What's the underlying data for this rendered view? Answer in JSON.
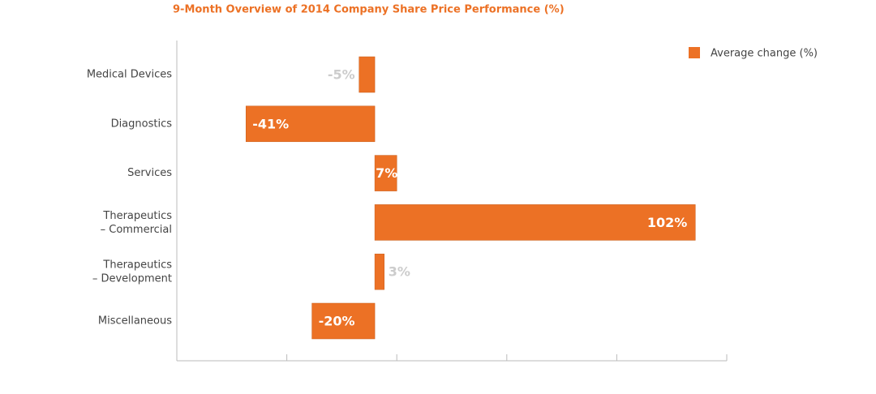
{
  "chart_data": {
    "type": "bar",
    "orientation": "horizontal",
    "title": "9-Month Overview of 2014 Company Share Price Performance (%)",
    "categories": [
      "Medical Devices",
      "Diagnostics",
      "Services",
      "Therapeutics – Commercial",
      "Therapeutics – Development",
      "Miscellaneous"
    ],
    "series": [
      {
        "name": "Average change (%)",
        "color": "#ec7125",
        "values": [
          -5,
          -41,
          7,
          102,
          3,
          -20
        ],
        "value_labels": [
          "-5%",
          "-41%",
          "7%",
          "102%",
          "3%",
          "-20%"
        ]
      }
    ],
    "xlim": [
      -63,
      112
    ],
    "legend": "top-right"
  }
}
